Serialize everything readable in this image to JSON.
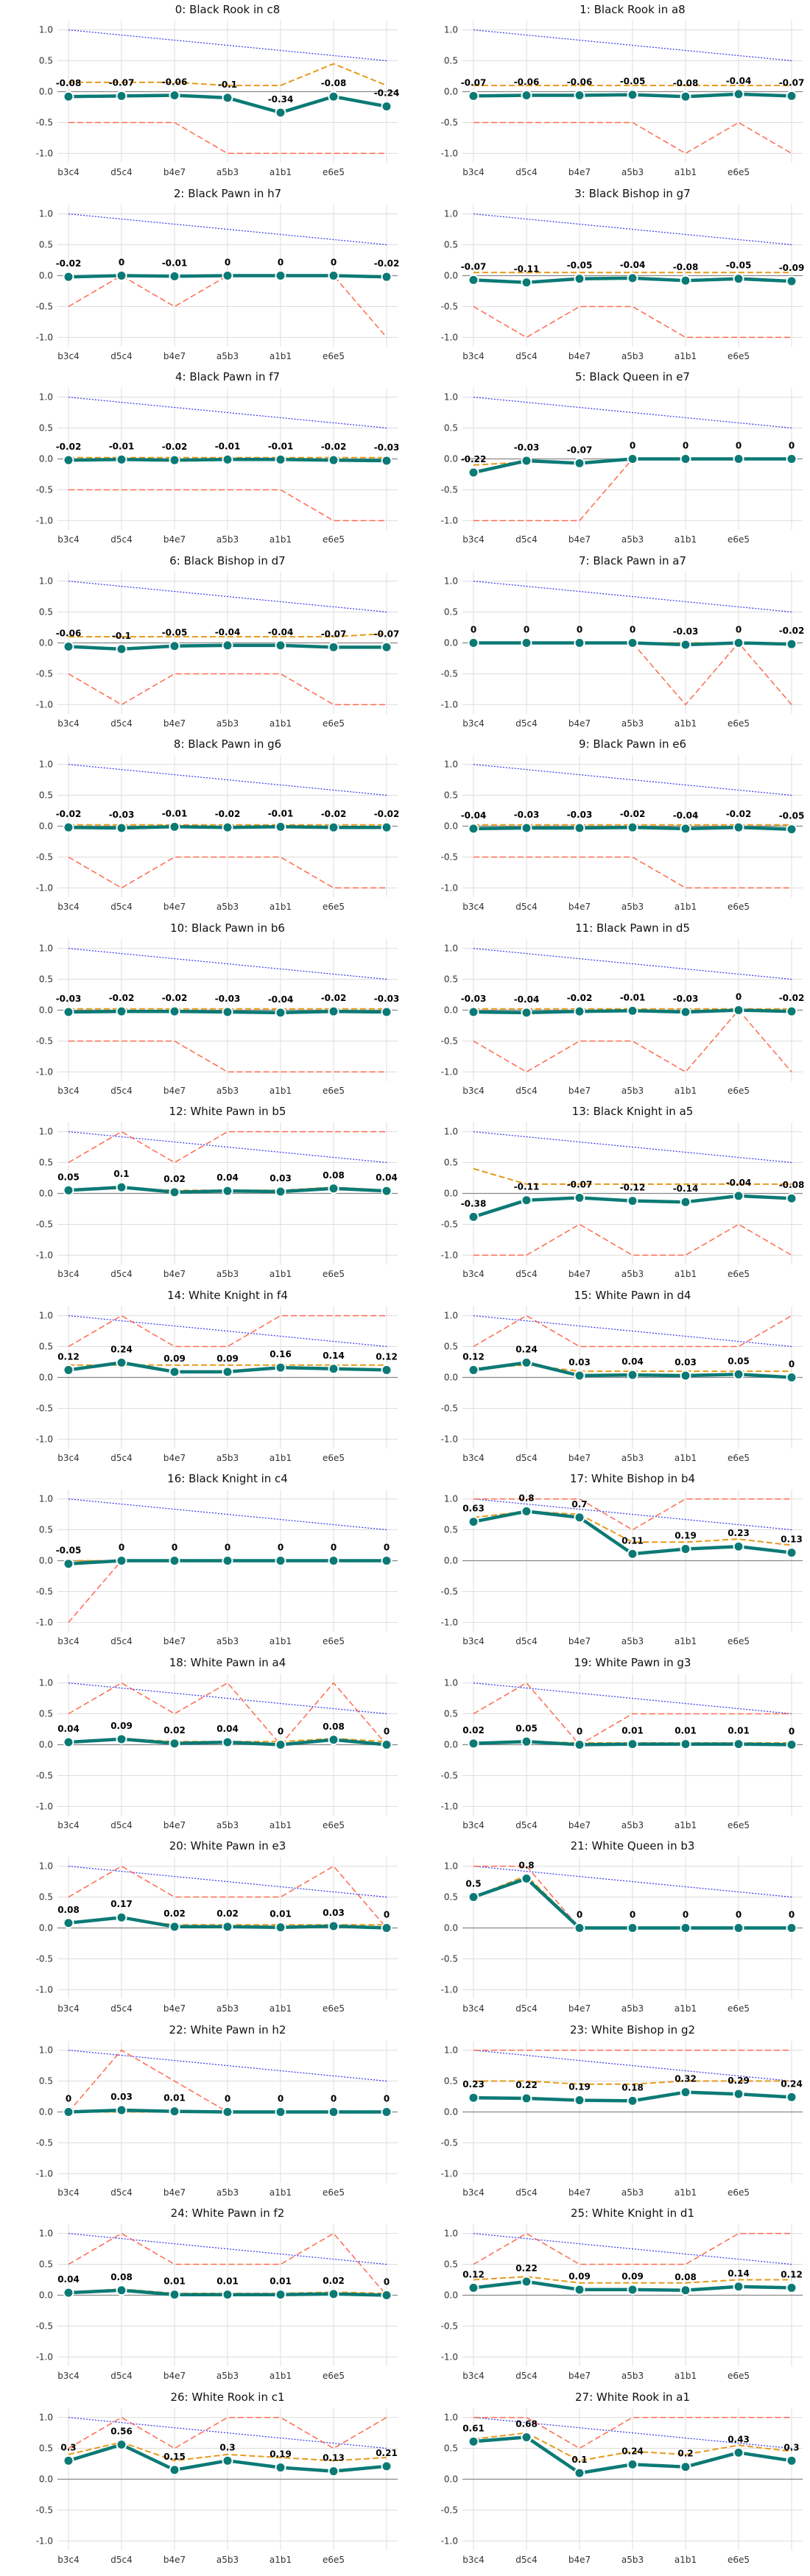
{
  "chart_data": {
    "type": "line",
    "categories": [
      "b3c4",
      "d5c4",
      "b4e7",
      "a5b3",
      "a1b1",
      "e6e5",
      ""
    ],
    "ylim": [
      -1.15,
      1.15
    ],
    "yticks": [
      "-1.0",
      "-0.5",
      "0.0",
      "0.5",
      "1.0"
    ],
    "grid": true,
    "colors": {
      "main": "#0b7a75",
      "orange": "#e69a19",
      "red": "#ff6a4d",
      "blue": "#3333ee",
      "grid": "#dddddd",
      "zero": "#888888"
    },
    "panels": [
      {
        "title": "0: Black Rook in c8",
        "values": [
          -0.08,
          -0.07,
          -0.06,
          -0.1,
          -0.34,
          -0.08,
          -0.24
        ],
        "orange": [
          0.15,
          0.15,
          0.15,
          0.1,
          0.1,
          0.45,
          0.1
        ],
        "red": [
          -0.5,
          -0.5,
          -0.5,
          -1.0,
          -1.0,
          -1.0,
          -1.0
        ],
        "blue": [
          1.0,
          0.5
        ]
      },
      {
        "title": "1: Black Rook in a8",
        "values": [
          -0.07,
          -0.06,
          -0.06,
          -0.05,
          -0.08,
          -0.04,
          -0.07
        ],
        "orange": [
          0.1,
          0.1,
          0.1,
          0.1,
          0.1,
          0.1,
          0.1
        ],
        "red": [
          -0.5,
          -0.5,
          -0.5,
          -0.5,
          -1.0,
          -0.5,
          -1.0
        ],
        "blue": [
          1.0,
          0.5
        ]
      },
      {
        "title": "2: Black Pawn in h7",
        "values": [
          -0.02,
          0.0,
          -0.01,
          0.0,
          0.0,
          0.0,
          -0.02
        ],
        "orange": [
          0.0,
          0.0,
          0.0,
          0.0,
          0.0,
          0.0,
          0.0
        ],
        "red": [
          -0.5,
          0.0,
          -0.5,
          0.0,
          0.0,
          0.0,
          -1.0
        ],
        "blue": [
          1.0,
          0.5
        ]
      },
      {
        "title": "3: Black Bishop in g7",
        "values": [
          -0.07,
          -0.11,
          -0.05,
          -0.04,
          -0.08,
          -0.05,
          -0.09
        ],
        "orange": [
          0.05,
          0.05,
          0.05,
          0.05,
          0.05,
          0.05,
          0.05
        ],
        "red": [
          -0.5,
          -1.0,
          -0.5,
          -0.5,
          -1.0,
          -1.0,
          -1.0
        ],
        "blue": [
          1.0,
          0.5
        ]
      },
      {
        "title": "4: Black Pawn in f7",
        "values": [
          -0.02,
          -0.01,
          -0.02,
          -0.01,
          -0.01,
          -0.02,
          -0.03
        ],
        "orange": [
          0.02,
          0.02,
          0.02,
          0.02,
          0.02,
          0.02,
          0.02
        ],
        "red": [
          -0.5,
          -0.5,
          -0.5,
          -0.5,
          -0.5,
          -1.0,
          -1.0
        ],
        "blue": [
          1.0,
          0.5
        ]
      },
      {
        "title": "5: Black Queen in e7",
        "values": [
          -0.22,
          -0.03,
          -0.07,
          0.0,
          0.0,
          0.0,
          0.0
        ],
        "orange": [
          -0.1,
          -0.05,
          -0.05,
          0.0,
          0.0,
          0.0,
          0.0
        ],
        "red": [
          -1.0,
          -1.0,
          -1.0,
          0.0,
          0.0,
          0.0,
          0.0
        ],
        "blue": [
          1.0,
          0.5
        ]
      },
      {
        "title": "6: Black Bishop in d7",
        "values": [
          -0.06,
          -0.1,
          -0.05,
          -0.04,
          -0.04,
          -0.07,
          -0.07
        ],
        "orange": [
          0.1,
          0.1,
          0.1,
          0.1,
          0.1,
          0.1,
          0.15
        ],
        "red": [
          -0.5,
          -1.0,
          -0.5,
          -0.5,
          -0.5,
          -1.0,
          -1.0
        ],
        "blue": [
          1.0,
          0.5
        ]
      },
      {
        "title": "7: Black Pawn in a7",
        "values": [
          0.0,
          0.0,
          0.0,
          0.0,
          -0.03,
          0.0,
          -0.02
        ],
        "orange": [
          0.0,
          0.0,
          0.0,
          0.0,
          0.0,
          0.0,
          0.0
        ],
        "red": [
          0.0,
          0.0,
          0.0,
          0.0,
          -1.0,
          0.0,
          -1.0
        ],
        "blue": [
          1.0,
          0.5
        ]
      },
      {
        "title": "8: Black Pawn in g6",
        "values": [
          -0.02,
          -0.03,
          -0.01,
          -0.02,
          -0.01,
          -0.02,
          -0.02
        ],
        "orange": [
          0.02,
          0.02,
          0.02,
          0.02,
          0.02,
          0.02,
          0.02
        ],
        "red": [
          -0.5,
          -1.0,
          -0.5,
          -0.5,
          -0.5,
          -1.0,
          -1.0
        ],
        "blue": [
          1.0,
          0.5
        ]
      },
      {
        "title": "9: Black Pawn in e6",
        "values": [
          -0.04,
          -0.03,
          -0.03,
          -0.02,
          -0.04,
          -0.02,
          -0.05
        ],
        "orange": [
          0.02,
          0.02,
          0.02,
          0.02,
          0.02,
          0.02,
          0.02
        ],
        "red": [
          -0.5,
          -0.5,
          -0.5,
          -0.5,
          -1.0,
          -1.0,
          -1.0
        ],
        "blue": [
          1.0,
          0.5
        ]
      },
      {
        "title": "10: Black Pawn in b6",
        "values": [
          -0.03,
          -0.02,
          -0.02,
          -0.03,
          -0.04,
          -0.02,
          -0.03
        ],
        "orange": [
          0.02,
          0.02,
          0.02,
          0.02,
          0.02,
          0.02,
          0.02
        ],
        "red": [
          -0.5,
          -0.5,
          -0.5,
          -1.0,
          -1.0,
          -1.0,
          -1.0
        ],
        "blue": [
          1.0,
          0.5
        ]
      },
      {
        "title": "11: Black Pawn in d5",
        "values": [
          -0.03,
          -0.04,
          -0.02,
          -0.01,
          -0.03,
          0.0,
          -0.02
        ],
        "orange": [
          0.02,
          0.02,
          0.02,
          0.02,
          0.02,
          0.02,
          0.02
        ],
        "red": [
          -0.5,
          -1.0,
          -0.5,
          -0.5,
          -1.0,
          0.0,
          -1.0
        ],
        "blue": [
          1.0,
          0.5
        ]
      },
      {
        "title": "12: White Pawn in b5",
        "values": [
          0.05,
          0.1,
          0.02,
          0.04,
          0.03,
          0.08,
          0.04
        ],
        "orange": [
          0.05,
          0.08,
          0.05,
          0.05,
          0.05,
          0.1,
          0.05
        ],
        "red": [
          0.5,
          1.0,
          0.5,
          1.0,
          1.0,
          1.0,
          1.0
        ],
        "blue": [
          1.0,
          0.5
        ]
      },
      {
        "title": "13: Black Knight in a5",
        "values": [
          -0.38,
          -0.11,
          -0.07,
          -0.12,
          -0.14,
          -0.04,
          -0.08
        ],
        "orange": [
          0.4,
          0.15,
          0.15,
          0.15,
          0.15,
          0.15,
          0.15
        ],
        "red": [
          -1.0,
          -1.0,
          -0.5,
          -1.0,
          -1.0,
          -0.5,
          -1.0
        ],
        "blue": [
          1.0,
          0.5
        ]
      },
      {
        "title": "14: White Knight in f4",
        "values": [
          0.12,
          0.24,
          0.09,
          0.09,
          0.16,
          0.14,
          0.12
        ],
        "orange": [
          0.2,
          0.2,
          0.2,
          0.2,
          0.2,
          0.2,
          0.2
        ],
        "red": [
          0.5,
          1.0,
          0.5,
          0.5,
          1.0,
          1.0,
          1.0
        ],
        "blue": [
          1.0,
          0.5
        ]
      },
      {
        "title": "15: White Pawn in d4",
        "values": [
          0.12,
          0.24,
          0.03,
          0.04,
          0.03,
          0.05,
          0.0
        ],
        "orange": [
          0.15,
          0.2,
          0.1,
          0.1,
          0.1,
          0.1,
          0.1
        ],
        "red": [
          0.5,
          1.0,
          0.5,
          0.5,
          0.5,
          0.5,
          1.0
        ],
        "blue": [
          1.0,
          0.5
        ]
      },
      {
        "title": "16: Black Knight in c4",
        "values": [
          -0.05,
          0.0,
          0.0,
          0.0,
          0.0,
          0.0,
          0.0
        ],
        "orange": [
          0.0,
          0.0,
          0.0,
          0.0,
          0.0,
          0.0,
          0.0
        ],
        "red": [
          -1.0,
          0.0,
          0.0,
          0.0,
          0.0,
          0.0,
          0.0
        ],
        "blue": [
          1.0,
          0.5
        ]
      },
      {
        "title": "17: White Bishop in b4",
        "values": [
          0.63,
          0.8,
          0.7,
          0.11,
          0.19,
          0.23,
          0.13
        ],
        "orange": [
          0.7,
          0.8,
          0.75,
          0.3,
          0.3,
          0.35,
          0.25
        ],
        "red": [
          1.0,
          1.0,
          1.0,
          0.5,
          1.0,
          1.0,
          1.0
        ],
        "blue": [
          1.0,
          0.5
        ]
      },
      {
        "title": "18: White Pawn in a4",
        "values": [
          0.04,
          0.09,
          0.02,
          0.04,
          0.0,
          0.08,
          0.0
        ],
        "orange": [
          0.05,
          0.1,
          0.05,
          0.05,
          0.05,
          0.1,
          0.05
        ],
        "red": [
          0.5,
          1.0,
          0.5,
          1.0,
          0.0,
          1.0,
          0.0
        ],
        "blue": [
          1.0,
          0.5
        ]
      },
      {
        "title": "19: White Pawn in g3",
        "values": [
          0.02,
          0.05,
          0.0,
          0.01,
          0.01,
          0.01,
          0.0
        ],
        "orange": [
          0.03,
          0.05,
          0.03,
          0.03,
          0.03,
          0.03,
          0.03
        ],
        "red": [
          0.5,
          1.0,
          0.0,
          0.5,
          0.5,
          0.5,
          0.5
        ],
        "blue": [
          1.0,
          0.5
        ]
      },
      {
        "title": "20: White Pawn in e3",
        "values": [
          0.08,
          0.17,
          0.02,
          0.02,
          0.01,
          0.03,
          0.0
        ],
        "orange": [
          0.1,
          0.15,
          0.05,
          0.05,
          0.05,
          0.05,
          0.05
        ],
        "red": [
          0.5,
          1.0,
          0.5,
          0.5,
          0.5,
          1.0,
          0.0
        ],
        "blue": [
          1.0,
          0.5
        ]
      },
      {
        "title": "21: White Queen in b3",
        "values": [
          0.5,
          0.8,
          0.0,
          0.0,
          0.0,
          0.0,
          0.0
        ],
        "orange": [
          0.5,
          0.85,
          0.0,
          0.0,
          0.0,
          0.0,
          0.0
        ],
        "red": [
          1.0,
          1.0,
          0.0,
          0.0,
          0.0,
          0.0,
          0.0
        ],
        "blue": [
          1.0,
          0.5
        ]
      },
      {
        "title": "22: White Pawn in h2",
        "values": [
          0.0,
          0.03,
          0.01,
          0.0,
          0.0,
          0.0,
          0.0
        ],
        "orange": [
          0.0,
          0.0,
          0.0,
          0.0,
          0.0,
          0.0,
          0.0
        ],
        "red": [
          0.0,
          1.0,
          0.5,
          0.0,
          0.0,
          0.0,
          0.0
        ],
        "blue": [
          1.0,
          0.5
        ]
      },
      {
        "title": "23: White Bishop in g2",
        "values": [
          0.23,
          0.22,
          0.19,
          0.18,
          0.32,
          0.29,
          0.24
        ],
        "orange": [
          0.5,
          0.5,
          0.45,
          0.45,
          0.5,
          0.5,
          0.5
        ],
        "red": [
          1.0,
          1.0,
          1.0,
          1.0,
          1.0,
          1.0,
          1.0
        ],
        "blue": [
          1.0,
          0.5
        ]
      },
      {
        "title": "24: White Pawn in f2",
        "values": [
          0.04,
          0.08,
          0.01,
          0.01,
          0.01,
          0.02,
          0.0
        ],
        "orange": [
          0.05,
          0.1,
          0.03,
          0.03,
          0.03,
          0.05,
          0.03
        ],
        "red": [
          0.5,
          1.0,
          0.5,
          0.5,
          0.5,
          1.0,
          0.0
        ],
        "blue": [
          1.0,
          0.5
        ]
      },
      {
        "title": "25: White Knight in d1",
        "values": [
          0.12,
          0.22,
          0.09,
          0.09,
          0.08,
          0.14,
          0.12
        ],
        "orange": [
          0.25,
          0.3,
          0.2,
          0.2,
          0.2,
          0.25,
          0.25
        ],
        "red": [
          0.5,
          1.0,
          0.5,
          0.5,
          0.5,
          1.0,
          1.0
        ],
        "blue": [
          1.0,
          0.5
        ]
      },
      {
        "title": "26: White Rook in c1",
        "values": [
          0.3,
          0.56,
          0.15,
          0.3,
          0.19,
          0.13,
          0.21
        ],
        "orange": [
          0.4,
          0.6,
          0.3,
          0.4,
          0.35,
          0.3,
          0.35
        ],
        "red": [
          0.5,
          1.0,
          0.5,
          1.0,
          1.0,
          0.5,
          1.0
        ],
        "blue": [
          1.0,
          0.5
        ]
      },
      {
        "title": "27: White Rook in a1",
        "values": [
          0.61,
          0.68,
          0.1,
          0.24,
          0.2,
          0.43,
          0.3
        ],
        "orange": [
          0.65,
          0.75,
          0.3,
          0.45,
          0.4,
          0.55,
          0.45
        ],
        "red": [
          1.0,
          1.0,
          0.5,
          1.0,
          1.0,
          1.0,
          1.0
        ],
        "blue": [
          1.0,
          0.5
        ]
      }
    ]
  }
}
